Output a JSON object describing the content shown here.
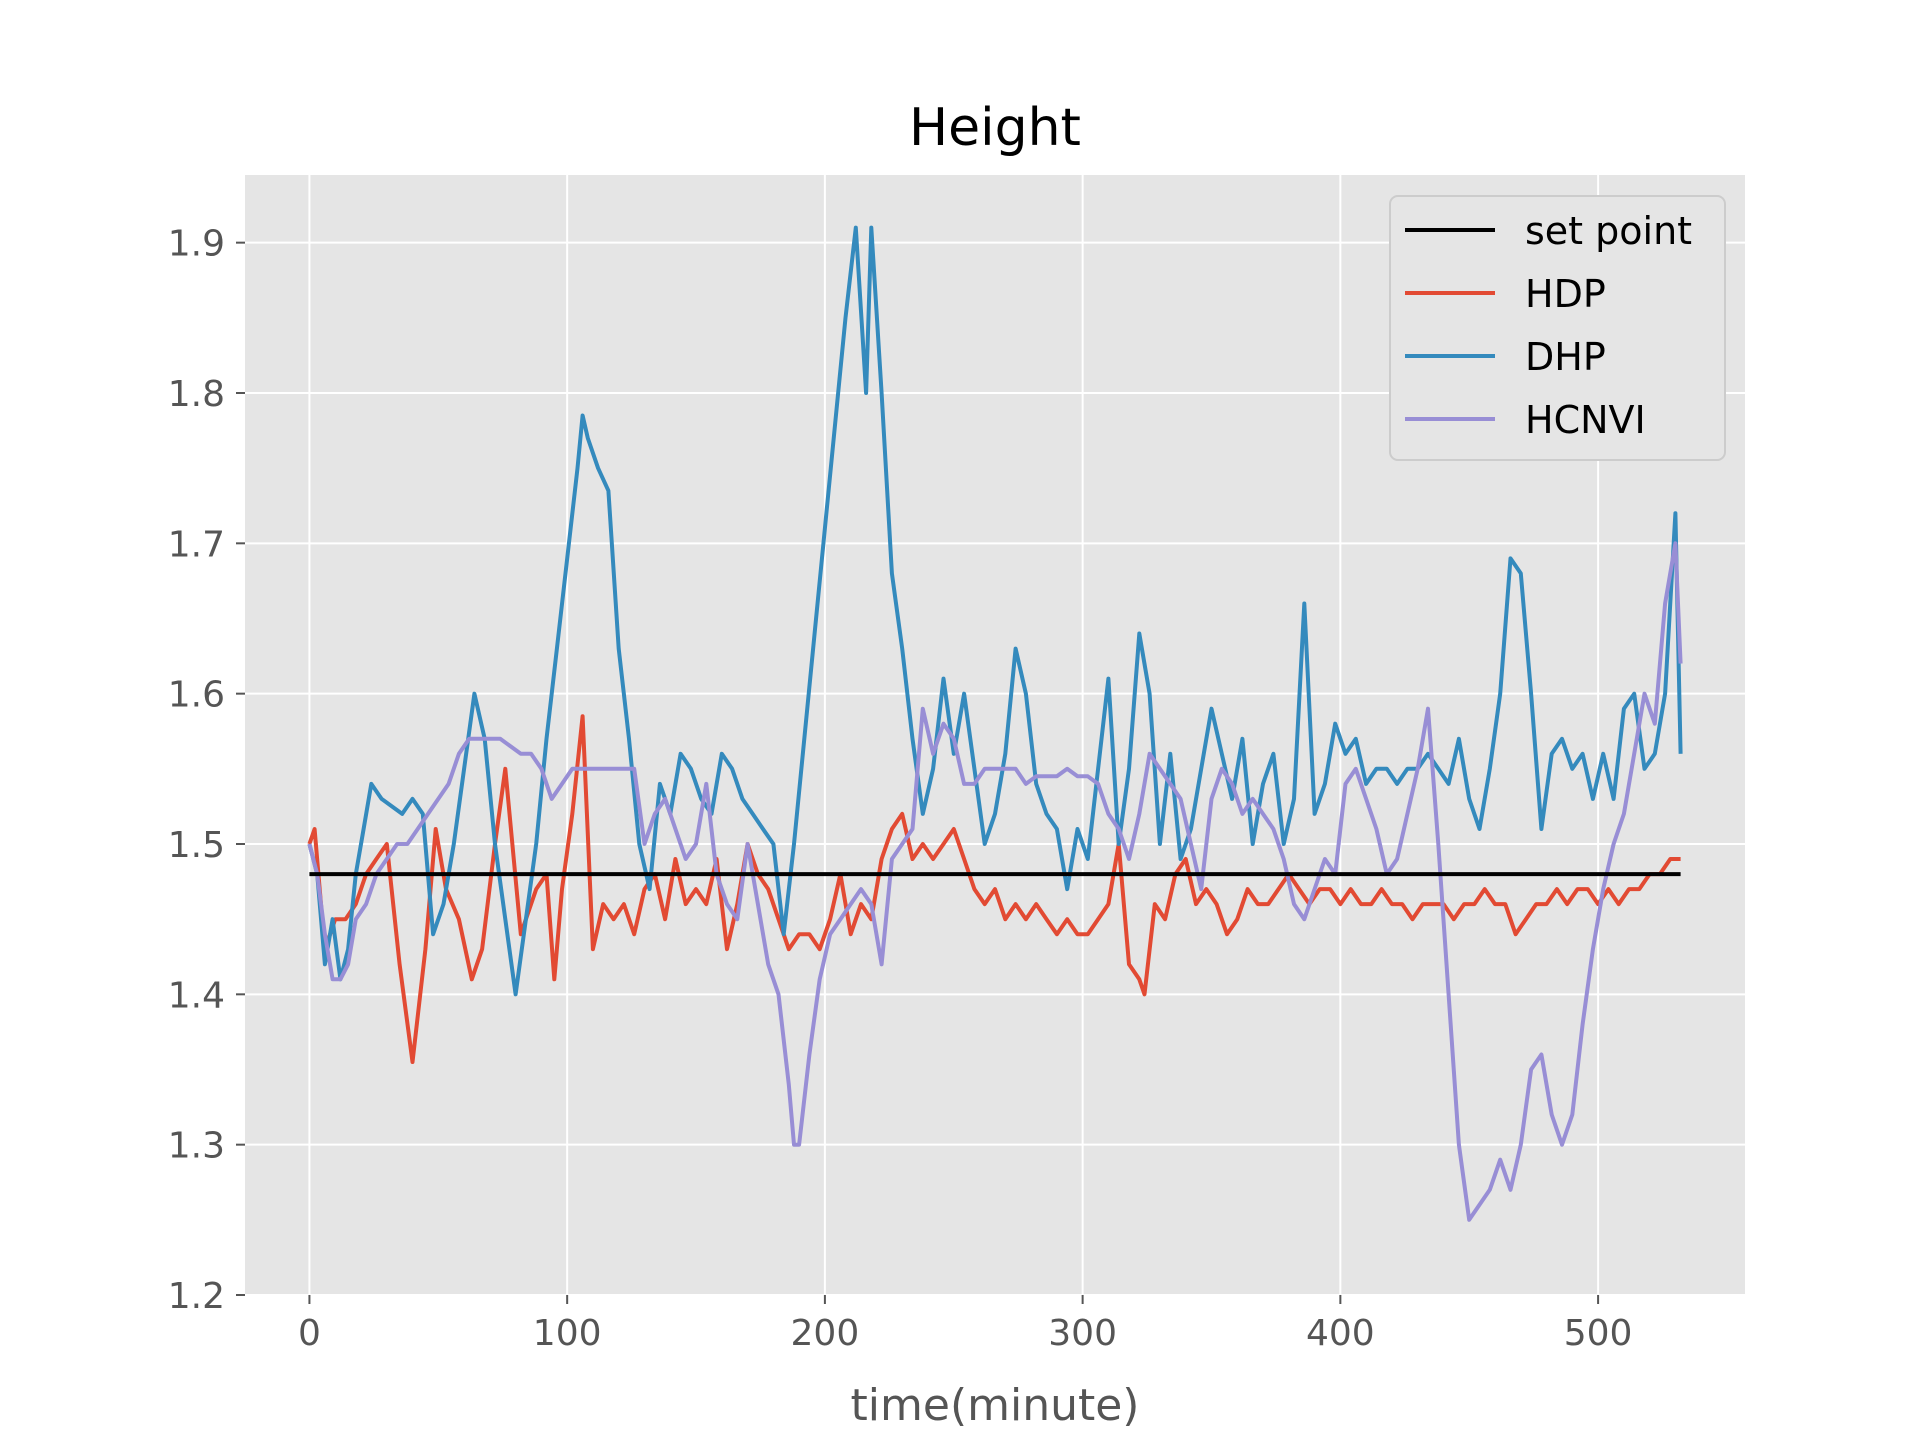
{
  "chart_data": {
    "type": "line",
    "title": "Height",
    "xlabel": "time(minute)",
    "ylabel": "",
    "xlim": [
      -25,
      557
    ],
    "ylim": [
      1.2,
      1.945
    ],
    "xticks": [
      0,
      100,
      200,
      300,
      400,
      500
    ],
    "yticks": [
      1.2,
      1.3,
      1.4,
      1.5,
      1.6,
      1.7,
      1.8,
      1.9
    ],
    "grid": true,
    "legend_position": "top-right",
    "series": [
      {
        "name": "set point",
        "color": "#000000",
        "x": [
          0,
          532
        ],
        "y": [
          1.48,
          1.48
        ]
      },
      {
        "name": "HDP",
        "color": "#E24A33",
        "x": [
          0,
          2,
          4,
          6,
          8,
          10,
          12,
          14,
          18,
          22,
          26,
          30,
          35,
          40,
          45,
          49,
          53,
          58,
          63,
          67,
          72,
          76,
          82,
          88,
          92,
          95,
          98,
          102,
          106,
          110,
          114,
          118,
          122,
          126,
          130,
          134,
          138,
          142,
          146,
          150,
          154,
          158,
          162,
          166,
          170,
          174,
          178,
          182,
          186,
          190,
          194,
          198,
          202,
          206,
          210,
          214,
          218,
          222,
          226,
          230,
          234,
          238,
          242,
          246,
          250,
          254,
          258,
          262,
          266,
          270,
          274,
          278,
          282,
          286,
          290,
          294,
          298,
          302,
          306,
          310,
          314,
          318,
          322,
          324,
          328,
          332,
          336,
          340,
          344,
          348,
          352,
          356,
          360,
          364,
          368,
          372,
          376,
          380,
          384,
          388,
          392,
          396,
          400,
          404,
          408,
          412,
          416,
          420,
          424,
          428,
          432,
          436,
          440,
          444,
          448,
          452,
          456,
          460,
          464,
          468,
          472,
          476,
          480,
          484,
          488,
          492,
          496,
          500,
          504,
          508,
          512,
          516,
          520,
          524,
          528,
          532
        ],
        "y": [
          1.5,
          1.51,
          1.47,
          1.43,
          1.44,
          1.45,
          1.45,
          1.45,
          1.46,
          1.48,
          1.49,
          1.5,
          1.42,
          1.355,
          1.43,
          1.51,
          1.47,
          1.45,
          1.41,
          1.43,
          1.5,
          1.55,
          1.44,
          1.47,
          1.48,
          1.41,
          1.47,
          1.52,
          1.585,
          1.43,
          1.46,
          1.45,
          1.46,
          1.44,
          1.47,
          1.48,
          1.45,
          1.49,
          1.46,
          1.47,
          1.46,
          1.49,
          1.43,
          1.46,
          1.5,
          1.48,
          1.47,
          1.45,
          1.43,
          1.44,
          1.44,
          1.43,
          1.45,
          1.48,
          1.44,
          1.46,
          1.45,
          1.49,
          1.51,
          1.52,
          1.49,
          1.5,
          1.49,
          1.5,
          1.51,
          1.49,
          1.47,
          1.46,
          1.47,
          1.45,
          1.46,
          1.45,
          1.46,
          1.45,
          1.44,
          1.45,
          1.44,
          1.44,
          1.45,
          1.46,
          1.5,
          1.42,
          1.41,
          1.4,
          1.46,
          1.45,
          1.48,
          1.49,
          1.46,
          1.47,
          1.46,
          1.44,
          1.45,
          1.47,
          1.46,
          1.46,
          1.47,
          1.48,
          1.47,
          1.46,
          1.47,
          1.47,
          1.46,
          1.47,
          1.46,
          1.46,
          1.47,
          1.46,
          1.46,
          1.45,
          1.46,
          1.46,
          1.46,
          1.45,
          1.46,
          1.46,
          1.47,
          1.46,
          1.46,
          1.44,
          1.45,
          1.46,
          1.46,
          1.47,
          1.46,
          1.47,
          1.47,
          1.46,
          1.47,
          1.46,
          1.47,
          1.47,
          1.48,
          1.48,
          1.49,
          1.49
        ]
      },
      {
        "name": "DHP",
        "color": "#348ABD",
        "x": [
          0,
          3,
          6,
          9,
          12,
          15,
          18,
          21,
          24,
          28,
          32,
          36,
          40,
          44,
          48,
          52,
          56,
          60,
          64,
          68,
          72,
          76,
          80,
          84,
          88,
          92,
          96,
          100,
          104,
          106,
          108,
          112,
          116,
          120,
          124,
          128,
          132,
          136,
          140,
          144,
          148,
          152,
          156,
          160,
          164,
          168,
          172,
          176,
          180,
          184,
          188,
          192,
          196,
          200,
          204,
          208,
          212,
          216,
          218,
          222,
          226,
          230,
          234,
          238,
          242,
          246,
          250,
          254,
          258,
          262,
          266,
          270,
          274,
          278,
          282,
          286,
          290,
          294,
          298,
          302,
          306,
          310,
          314,
          318,
          322,
          326,
          330,
          334,
          338,
          342,
          346,
          350,
          354,
          358,
          362,
          366,
          370,
          374,
          378,
          382,
          386,
          390,
          394,
          398,
          402,
          406,
          410,
          414,
          418,
          422,
          426,
          430,
          434,
          438,
          442,
          446,
          450,
          454,
          458,
          462,
          466,
          470,
          474,
          478,
          482,
          486,
          490,
          494,
          498,
          502,
          506,
          510,
          514,
          518,
          522,
          526,
          530,
          532
        ],
        "y": [
          1.5,
          1.48,
          1.42,
          1.45,
          1.41,
          1.43,
          1.48,
          1.51,
          1.54,
          1.53,
          1.525,
          1.52,
          1.53,
          1.52,
          1.44,
          1.46,
          1.5,
          1.55,
          1.6,
          1.57,
          1.5,
          1.45,
          1.4,
          1.45,
          1.5,
          1.57,
          1.63,
          1.69,
          1.75,
          1.785,
          1.77,
          1.75,
          1.735,
          1.63,
          1.57,
          1.5,
          1.47,
          1.54,
          1.52,
          1.56,
          1.55,
          1.53,
          1.52,
          1.56,
          1.55,
          1.53,
          1.52,
          1.51,
          1.5,
          1.44,
          1.5,
          1.57,
          1.64,
          1.71,
          1.78,
          1.85,
          1.91,
          1.8,
          1.91,
          1.8,
          1.68,
          1.63,
          1.57,
          1.52,
          1.55,
          1.61,
          1.56,
          1.6,
          1.55,
          1.5,
          1.52,
          1.56,
          1.63,
          1.6,
          1.54,
          1.52,
          1.51,
          1.47,
          1.51,
          1.49,
          1.55,
          1.61,
          1.5,
          1.55,
          1.64,
          1.6,
          1.5,
          1.56,
          1.49,
          1.51,
          1.55,
          1.59,
          1.56,
          1.53,
          1.57,
          1.5,
          1.54,
          1.56,
          1.5,
          1.53,
          1.66,
          1.52,
          1.54,
          1.58,
          1.56,
          1.57,
          1.54,
          1.55,
          1.55,
          1.54,
          1.55,
          1.55,
          1.56,
          1.55,
          1.54,
          1.57,
          1.53,
          1.51,
          1.55,
          1.6,
          1.69,
          1.68,
          1.6,
          1.51,
          1.56,
          1.57,
          1.55,
          1.56,
          1.53,
          1.56,
          1.53,
          1.59,
          1.6,
          1.55,
          1.56,
          1.6,
          1.72,
          1.56
        ]
      },
      {
        "name": "HCNVI",
        "color": "#988ED5",
        "x": [
          0,
          3,
          6,
          9,
          12,
          15,
          18,
          22,
          26,
          30,
          34,
          38,
          42,
          46,
          50,
          54,
          58,
          62,
          66,
          70,
          74,
          78,
          82,
          86,
          90,
          94,
          98,
          102,
          106,
          110,
          114,
          118,
          122,
          126,
          130,
          134,
          138,
          142,
          146,
          150,
          154,
          158,
          162,
          166,
          170,
          174,
          178,
          182,
          186,
          188,
          190,
          194,
          198,
          202,
          206,
          210,
          214,
          218,
          222,
          226,
          230,
          234,
          238,
          242,
          246,
          250,
          254,
          258,
          262,
          266,
          270,
          274,
          278,
          282,
          286,
          290,
          294,
          298,
          302,
          306,
          310,
          314,
          318,
          322,
          326,
          330,
          334,
          338,
          342,
          346,
          350,
          354,
          358,
          362,
          366,
          370,
          374,
          378,
          382,
          386,
          390,
          394,
          398,
          402,
          406,
          410,
          414,
          418,
          422,
          426,
          430,
          434,
          438,
          442,
          446,
          450,
          454,
          458,
          462,
          466,
          470,
          474,
          478,
          482,
          486,
          490,
          494,
          498,
          502,
          506,
          510,
          514,
          518,
          522,
          526,
          530,
          532
        ],
        "y": [
          1.5,
          1.48,
          1.44,
          1.41,
          1.41,
          1.42,
          1.45,
          1.46,
          1.48,
          1.49,
          1.5,
          1.5,
          1.51,
          1.52,
          1.53,
          1.54,
          1.56,
          1.57,
          1.57,
          1.57,
          1.57,
          1.565,
          1.56,
          1.56,
          1.55,
          1.53,
          1.54,
          1.55,
          1.55,
          1.55,
          1.55,
          1.55,
          1.55,
          1.55,
          1.5,
          1.52,
          1.53,
          1.51,
          1.49,
          1.5,
          1.54,
          1.48,
          1.46,
          1.45,
          1.5,
          1.46,
          1.42,
          1.4,
          1.34,
          1.3,
          1.3,
          1.36,
          1.41,
          1.44,
          1.45,
          1.46,
          1.47,
          1.46,
          1.42,
          1.49,
          1.5,
          1.51,
          1.59,
          1.56,
          1.58,
          1.57,
          1.54,
          1.54,
          1.55,
          1.55,
          1.55,
          1.55,
          1.54,
          1.545,
          1.545,
          1.545,
          1.55,
          1.545,
          1.545,
          1.54,
          1.52,
          1.51,
          1.49,
          1.52,
          1.56,
          1.55,
          1.54,
          1.53,
          1.5,
          1.47,
          1.53,
          1.55,
          1.54,
          1.52,
          1.53,
          1.52,
          1.51,
          1.49,
          1.46,
          1.45,
          1.47,
          1.49,
          1.48,
          1.54,
          1.55,
          1.53,
          1.51,
          1.48,
          1.49,
          1.52,
          1.55,
          1.59,
          1.5,
          1.4,
          1.3,
          1.25,
          1.26,
          1.27,
          1.29,
          1.27,
          1.3,
          1.35,
          1.36,
          1.32,
          1.3,
          1.32,
          1.38,
          1.43,
          1.47,
          1.5,
          1.52,
          1.56,
          1.6,
          1.58,
          1.66,
          1.7,
          1.62
        ]
      }
    ]
  }
}
